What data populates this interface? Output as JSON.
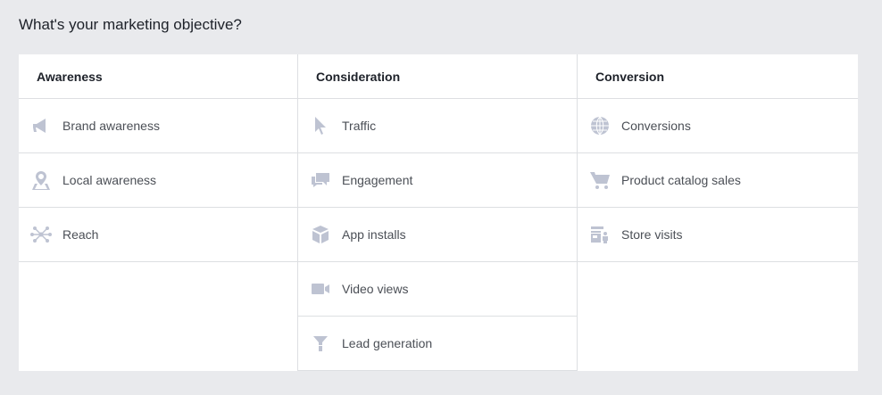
{
  "title": "What's your marketing objective?",
  "icon_color": "#bec3d2",
  "columns": [
    {
      "label": "Awareness",
      "items": [
        {
          "label": "Brand awareness",
          "icon": "megaphone-icon"
        },
        {
          "label": "Local awareness",
          "icon": "map-pin-icon"
        },
        {
          "label": "Reach",
          "icon": "network-icon"
        }
      ]
    },
    {
      "label": "Consideration",
      "items": [
        {
          "label": "Traffic",
          "icon": "cursor-icon"
        },
        {
          "label": "Engagement",
          "icon": "chat-bubbles-icon"
        },
        {
          "label": "App installs",
          "icon": "box-icon"
        },
        {
          "label": "Video views",
          "icon": "video-camera-icon"
        },
        {
          "label": "Lead generation",
          "icon": "funnel-icon"
        }
      ]
    },
    {
      "label": "Conversion",
      "items": [
        {
          "label": "Conversions",
          "icon": "globe-icon"
        },
        {
          "label": "Product catalog sales",
          "icon": "shopping-cart-icon"
        },
        {
          "label": "Store visits",
          "icon": "store-icon"
        }
      ]
    }
  ]
}
